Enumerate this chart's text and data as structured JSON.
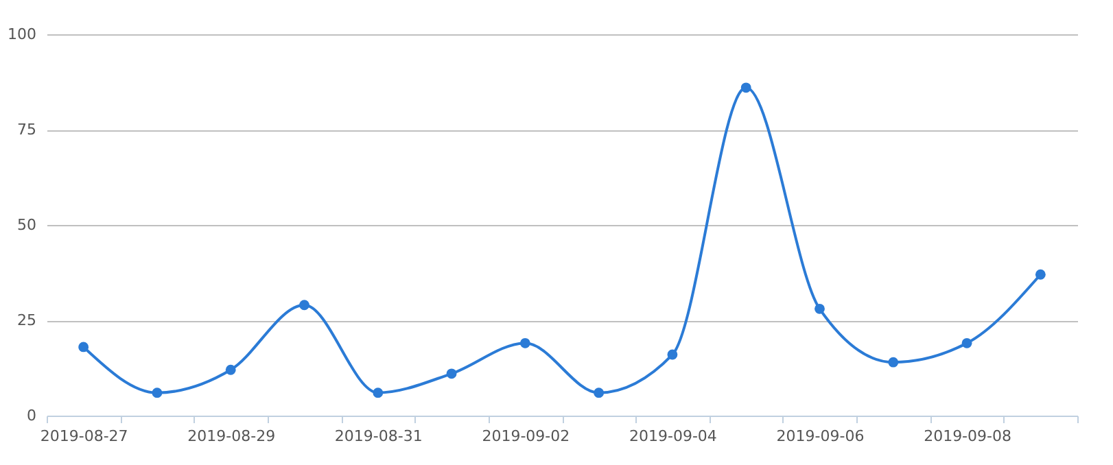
{
  "chart_data": {
    "type": "line",
    "categories": [
      "2019-08-27",
      null,
      "2019-08-29",
      null,
      "2019-08-31",
      null,
      "2019-09-02",
      null,
      "2019-09-04",
      null,
      "2019-09-06",
      null,
      "2019-09-08",
      null
    ],
    "series": [
      {
        "color": "#2b7bd6",
        "values": [
          18,
          6,
          12,
          29,
          6,
          11,
          19,
          6,
          16,
          86,
          28,
          14,
          19,
          37
        ]
      }
    ],
    "ylim": [
      0,
      100
    ],
    "yticks": [
      0,
      25,
      50,
      75,
      100
    ],
    "grid": "y",
    "marker": "circle",
    "line_style": "solid"
  }
}
